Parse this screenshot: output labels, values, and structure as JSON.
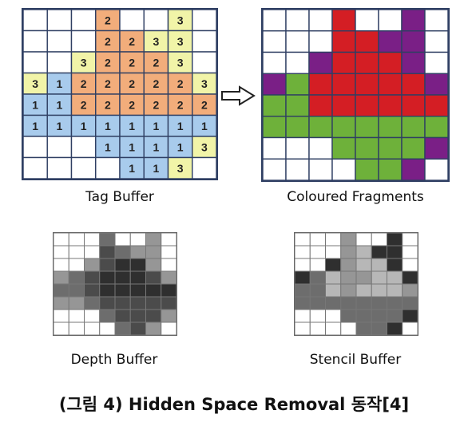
{
  "labels": {
    "tag_buffer": "Tag Buffer",
    "coloured_fragments": "Coloured Fragments",
    "depth_buffer": "Depth Buffer",
    "stencil_buffer": "Stencil Buffer"
  },
  "caption": "(그림 4) Hidden Space Removal 동작[4]",
  "palette": {
    "white": "#ffffff",
    "orange": "#f2ad7b",
    "blue": "#a8cbec",
    "yellow": "#f1f4a8",
    "red": "#d41e24",
    "green": "#6eb13a",
    "purple": "#7a1f86",
    "d1": "#2f2f2f",
    "d2": "#4b4b4b",
    "d3": "#6d6d6d",
    "d4": "#969696",
    "d5": "#b7b7b7",
    "grid_border": "#2f3f63"
  },
  "tag_buffer": [
    [
      "w",
      "w",
      "w",
      "o2",
      "w",
      "w",
      "y3",
      "w"
    ],
    [
      "w",
      "w",
      "w",
      "o2",
      "o2",
      "y3",
      "y3",
      "w"
    ],
    [
      "w",
      "w",
      "y3",
      "o2",
      "o2",
      "o2",
      "y3",
      "w"
    ],
    [
      "y3",
      "b1",
      "o2",
      "o2",
      "o2",
      "o2",
      "o2",
      "y3"
    ],
    [
      "b1",
      "b1",
      "o2",
      "o2",
      "o2",
      "o2",
      "o2",
      "o2"
    ],
    [
      "b1",
      "b1",
      "b1",
      "b1",
      "b1",
      "b1",
      "b1",
      "b1"
    ],
    [
      "w",
      "w",
      "w",
      "b1",
      "b1",
      "b1",
      "b1",
      "y3"
    ],
    [
      "w",
      "w",
      "w",
      "w",
      "b1",
      "b1",
      "y3",
      "w"
    ]
  ],
  "coloured_fragments": [
    [
      "w",
      "w",
      "w",
      "r",
      "w",
      "w",
      "p",
      "w"
    ],
    [
      "w",
      "w",
      "w",
      "r",
      "r",
      "p",
      "p",
      "w"
    ],
    [
      "w",
      "w",
      "p",
      "r",
      "r",
      "r",
      "p",
      "w"
    ],
    [
      "p",
      "g",
      "r",
      "r",
      "r",
      "r",
      "r",
      "p"
    ],
    [
      "g",
      "g",
      "r",
      "r",
      "r",
      "r",
      "r",
      "r"
    ],
    [
      "g",
      "g",
      "g",
      "g",
      "g",
      "g",
      "g",
      "g"
    ],
    [
      "w",
      "w",
      "w",
      "g",
      "g",
      "g",
      "g",
      "p"
    ],
    [
      "w",
      "w",
      "w",
      "w",
      "g",
      "g",
      "p",
      "w"
    ]
  ],
  "depth_buffer": [
    [
      "w",
      "w",
      "w",
      "d3",
      "w",
      "w",
      "d4",
      "w"
    ],
    [
      "w",
      "w",
      "w",
      "d2",
      "d3",
      "d4",
      "d4",
      "w"
    ],
    [
      "w",
      "w",
      "d4",
      "d2",
      "d1",
      "d1",
      "d4",
      "w"
    ],
    [
      "d4",
      "d3",
      "d2",
      "d1",
      "d1",
      "d1",
      "d2",
      "d4"
    ],
    [
      "d3",
      "d3",
      "d2",
      "d1",
      "d1",
      "d1",
      "d1",
      "d1"
    ],
    [
      "d4",
      "d4",
      "d3",
      "d2",
      "d2",
      "d2",
      "d2",
      "d2"
    ],
    [
      "w",
      "w",
      "w",
      "d3",
      "d2",
      "d2",
      "d2",
      "d4"
    ],
    [
      "w",
      "w",
      "w",
      "w",
      "d3",
      "d2",
      "d4",
      "w"
    ]
  ],
  "stencil_buffer": [
    [
      "w",
      "w",
      "w",
      "d4",
      "w",
      "w",
      "d1",
      "w"
    ],
    [
      "w",
      "w",
      "w",
      "d4",
      "d5",
      "d1",
      "d1",
      "w"
    ],
    [
      "w",
      "w",
      "d1",
      "d4",
      "d5",
      "d5",
      "d1",
      "w"
    ],
    [
      "d1",
      "d3",
      "d5",
      "d4",
      "d4",
      "d5",
      "d5",
      "d1"
    ],
    [
      "d3",
      "d3",
      "d5",
      "d4",
      "d5",
      "d5",
      "d5",
      "d4"
    ],
    [
      "d3",
      "d3",
      "d3",
      "d3",
      "d3",
      "d3",
      "d3",
      "d3"
    ],
    [
      "w",
      "w",
      "w",
      "d3",
      "d3",
      "d3",
      "d3",
      "d1"
    ],
    [
      "w",
      "w",
      "w",
      "w",
      "d3",
      "d3",
      "d1",
      "w"
    ]
  ]
}
